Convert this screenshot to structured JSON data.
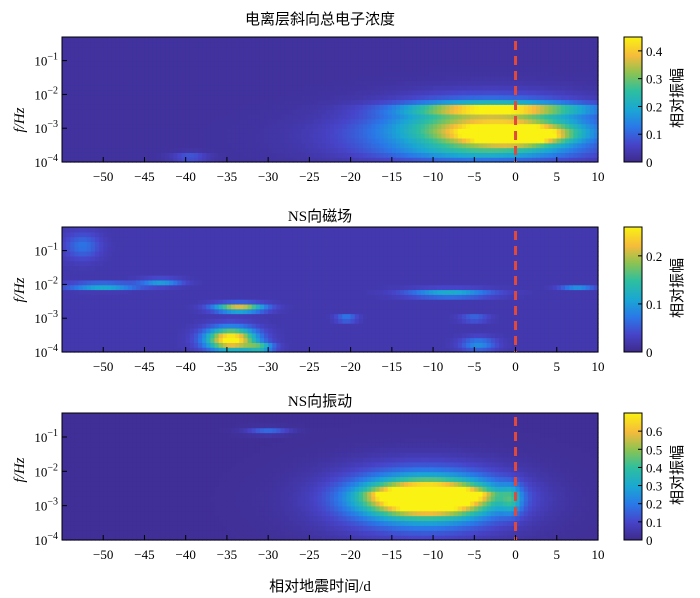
{
  "figure": {
    "xlabel": "相对地震时间/d",
    "ylabel": "f/Hz",
    "colorbar_label": "相对振幅",
    "marker_color": "#e04a3c"
  },
  "chart_data": [
    {
      "type": "heatmap",
      "title": "电离层斜向总电子浓度",
      "xlabel": "",
      "ylabel": "f/Hz",
      "xlim": [
        -55,
        10
      ],
      "xticks": [
        -50,
        -45,
        -40,
        -35,
        -30,
        -25,
        -20,
        -15,
        -10,
        -5,
        0,
        5,
        10
      ],
      "ylim": [
        0.0001,
        0.5
      ],
      "yscale": "log",
      "yticks": [
        "10^-4",
        "10^-3",
        "10^-2",
        "10^-1"
      ],
      "colorbar": {
        "label": "相对振幅",
        "range": [
          0,
          0.45
        ],
        "ticks": [
          0,
          0.1,
          0.2,
          0.3,
          0.4
        ]
      },
      "colormap": "parula",
      "background_level": 0.02,
      "marker_x": 0,
      "features": [
        {
          "x": [
            -22,
            10
          ],
          "f": [
            0.0001,
            0.003
          ],
          "peak": 0.15
        },
        {
          "x": [
            -16,
            10
          ],
          "f": [
            0.0003,
            0.01
          ],
          "peak": 0.25
        },
        {
          "x": [
            -14,
            10
          ],
          "f": [
            0.0025,
            0.006
          ],
          "peak": 0.28
        },
        {
          "x": [
            -8,
            8
          ],
          "f": [
            0.0003,
            0.0015
          ],
          "peak": 0.35
        },
        {
          "x": [
            -4,
            4
          ],
          "f": [
            0.0004,
            0.001
          ],
          "peak": 0.44
        },
        {
          "x": [
            -16,
            10
          ],
          "f": [
            0.0001,
            0.0004
          ],
          "peak": 0.1
        },
        {
          "x": [
            -42,
            -37
          ],
          "f": [
            0.0001,
            0.0002
          ],
          "peak": 0.08
        }
      ]
    },
    {
      "type": "heatmap",
      "title": "NS向磁场",
      "xlabel": "",
      "ylabel": "f/Hz",
      "xlim": [
        -55,
        10
      ],
      "xticks": [
        -50,
        -45,
        -40,
        -35,
        -30,
        -25,
        -20,
        -15,
        -10,
        -5,
        0,
        5,
        10
      ],
      "ylim": [
        0.0001,
        0.5
      ],
      "yscale": "log",
      "yticks": [
        "10^-4",
        "10^-3",
        "10^-2",
        "10^-1"
      ],
      "colorbar": {
        "label": "相对振幅",
        "range": [
          0,
          0.26
        ],
        "ticks": [
          0,
          0.1,
          0.2
        ]
      },
      "colormap": "parula",
      "background_level": 0.02,
      "marker_x": 0,
      "features": [
        {
          "x": [
            -38,
            -31
          ],
          "f": [
            0.0001,
            0.0006
          ],
          "peak": 0.26
        },
        {
          "x": [
            -37,
            -30
          ],
          "f": [
            0.0015,
            0.003
          ],
          "peak": 0.2
        },
        {
          "x": [
            -33,
            -29
          ],
          "f": [
            0.0001,
            0.0002
          ],
          "peak": 0.12
        },
        {
          "x": [
            -55,
            -45
          ],
          "f": [
            0.007,
            0.012
          ],
          "peak": 0.11
        },
        {
          "x": [
            -46,
            -40
          ],
          "f": [
            0.009,
            0.016
          ],
          "peak": 0.08
        },
        {
          "x": [
            -14,
            -2
          ],
          "f": [
            0.004,
            0.008
          ],
          "peak": 0.1
        },
        {
          "x": [
            -22,
            -19
          ],
          "f": [
            0.0008,
            0.0013
          ],
          "peak": 0.08
        },
        {
          "x": [
            -7,
            -3
          ],
          "f": [
            0.0008,
            0.0013
          ],
          "peak": 0.06
        },
        {
          "x": [
            -7,
            -2
          ],
          "f": [
            0.0001,
            0.0003
          ],
          "peak": 0.07
        },
        {
          "x": [
            5,
            10
          ],
          "f": [
            0.007,
            0.01
          ],
          "peak": 0.07
        },
        {
          "x": [
            -55,
            -50
          ],
          "f": [
            0.05,
            0.4
          ],
          "peak": 0.05
        }
      ]
    },
    {
      "type": "heatmap",
      "title": "NS向振动",
      "xlabel": "相对地震时间/d",
      "ylabel": "f/Hz",
      "xlim": [
        -55,
        10
      ],
      "xticks": [
        -50,
        -45,
        -40,
        -35,
        -30,
        -25,
        -20,
        -15,
        -10,
        -5,
        0,
        5,
        10
      ],
      "ylim": [
        0.0001,
        0.5
      ],
      "yscale": "log",
      "yticks": [
        "10^-4",
        "10^-3",
        "10^-2",
        "10^-1"
      ],
      "colorbar": {
        "label": "相对振幅",
        "range": [
          0,
          0.7
        ],
        "ticks": [
          0,
          0.1,
          0.2,
          0.3,
          0.4,
          0.5,
          0.6
        ]
      },
      "colormap": "parula",
      "background_level": 0.02,
      "marker_x": 0,
      "features": [
        {
          "x": [
            -24,
            1
          ],
          "f": [
            0.0001,
            0.02
          ],
          "peak": 0.22
        },
        {
          "x": [
            -20,
            -1
          ],
          "f": [
            0.0003,
            0.01
          ],
          "peak": 0.4
        },
        {
          "x": [
            -18,
            -3
          ],
          "f": [
            0.0006,
            0.005
          ],
          "peak": 0.55
        },
        {
          "x": [
            -16,
            -4
          ],
          "f": [
            0.0015,
            0.003
          ],
          "peak": 0.66
        },
        {
          "x": [
            -33,
            -27
          ],
          "f": [
            0.12,
            0.2
          ],
          "peak": 0.15
        },
        {
          "x": [
            -2,
            1
          ],
          "f": [
            0.0005,
            0.005
          ],
          "peak": 0.2
        }
      ]
    }
  ]
}
